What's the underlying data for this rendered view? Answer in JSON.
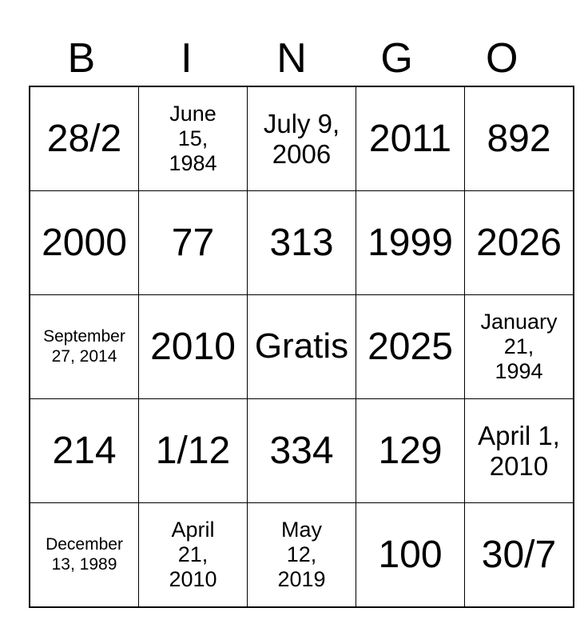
{
  "title_letters": [
    "B",
    "I",
    "N",
    "G",
    "O"
  ],
  "colors": {
    "background": "#ffffff",
    "text": "#000000",
    "grid_lines": "#000000"
  },
  "grid": {
    "columns": 5,
    "rows": 5,
    "free_space_label": "Gratis",
    "cells": [
      {
        "text": "28/2",
        "size": "xl"
      },
      {
        "text": "June\n15,\n1984",
        "size": "sm"
      },
      {
        "text": "July 9,\n2006",
        "size": "md"
      },
      {
        "text": "2011",
        "size": "xl"
      },
      {
        "text": "892",
        "size": "xl"
      },
      {
        "text": "2000",
        "size": "xl"
      },
      {
        "text": "77",
        "size": "xl"
      },
      {
        "text": "313",
        "size": "xl"
      },
      {
        "text": "1999",
        "size": "xl"
      },
      {
        "text": "2026",
        "size": "xl"
      },
      {
        "text": "September\n27, 2014",
        "size": "xs"
      },
      {
        "text": "2010",
        "size": "xl"
      },
      {
        "text": "Gratis",
        "size": "lg"
      },
      {
        "text": "2025",
        "size": "xl"
      },
      {
        "text": "January\n21,\n1994",
        "size": "sm"
      },
      {
        "text": "214",
        "size": "xl"
      },
      {
        "text": "1/12",
        "size": "xl"
      },
      {
        "text": "334",
        "size": "xl"
      },
      {
        "text": "129",
        "size": "xl"
      },
      {
        "text": "April 1,\n2010",
        "size": "md"
      },
      {
        "text": "December\n13, 1989",
        "size": "xs"
      },
      {
        "text": "April\n21,\n2010",
        "size": "sm"
      },
      {
        "text": "May\n12,\n2019",
        "size": "sm"
      },
      {
        "text": "100",
        "size": "xl"
      },
      {
        "text": "30/7",
        "size": "xl"
      }
    ]
  }
}
